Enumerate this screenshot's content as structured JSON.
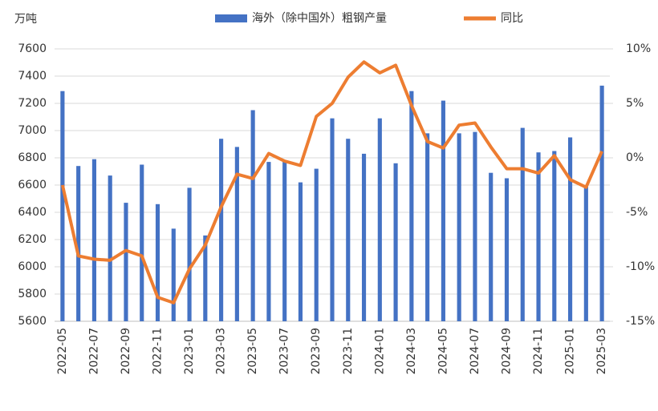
{
  "chart_data": {
    "type": "bar-line",
    "unit_label": "万吨",
    "categories": [
      "2022-05",
      null,
      "2022-07",
      null,
      "2022-09",
      null,
      "2022-11",
      null,
      "2023-01",
      null,
      "2023-03",
      null,
      "2023-05",
      null,
      "2023-07",
      null,
      "2023-09",
      null,
      "2023-11",
      null,
      "2024-01",
      null,
      "2024-03",
      null,
      "2024-05",
      null,
      "2024-07",
      null,
      "2024-09",
      null,
      "2024-11",
      null,
      "2025-01",
      null,
      "2025-03"
    ],
    "series": [
      {
        "name": "海外（除中国外）粗钢产量",
        "type": "bar",
        "color": "#4472c4",
        "values": [
          7290,
          6740,
          6790,
          6670,
          6470,
          6750,
          6460,
          6280,
          6580,
          6230,
          6940,
          6880,
          7150,
          6770,
          6770,
          6620,
          6720,
          7090,
          6940,
          6830,
          7090,
          6760,
          7290,
          6980,
          7220,
          6980,
          6990,
          6690,
          6650,
          7020,
          6840,
          6850,
          6950,
          6590,
          7330
        ]
      },
      {
        "name": "同比",
        "type": "line",
        "axis": "y2",
        "color": "#ed7d31",
        "values": [
          -2.5,
          -9,
          -9.3,
          -9.4,
          -8.5,
          -9,
          -12.8,
          -13.3,
          -10.2,
          -8,
          -4.5,
          -1.5,
          -1.9,
          0.4,
          -0.3,
          -0.7,
          3.8,
          5,
          7.4,
          8.8,
          7.8,
          8.5,
          4.8,
          1.5,
          0.9,
          3,
          3.2,
          1,
          -1,
          -1,
          -1.4,
          0.2,
          -2,
          -2.7,
          0.6
        ]
      }
    ],
    "ylim": [
      5600,
      7600
    ],
    "yticks": [
      5600,
      5800,
      6000,
      6200,
      6400,
      6600,
      6800,
      7000,
      7200,
      7400,
      7600
    ],
    "y2lim": [
      -15,
      10
    ],
    "y2ticks": [
      {
        "value": -15,
        "label": "-15%"
      },
      {
        "value": -10,
        "label": "-10%"
      },
      {
        "value": -5,
        "label": "-5%"
      },
      {
        "value": 0,
        "label": "0%"
      },
      {
        "value": 5,
        "label": "5%"
      },
      {
        "value": 10,
        "label": "10%"
      }
    ],
    "grid": true
  }
}
